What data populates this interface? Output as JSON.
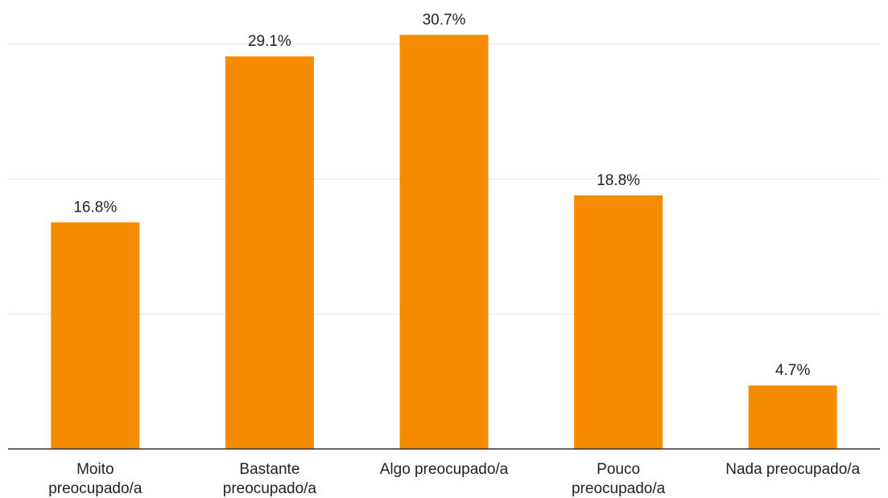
{
  "chart_data": {
    "type": "bar",
    "categories": [
      [
        "Moito",
        "preocupado/a"
      ],
      [
        "Bastante",
        "preocupado/a"
      ],
      [
        "Algo preocupado/a"
      ],
      [
        "Pouco",
        "preocupado/a"
      ],
      [
        "Nada preocupado/a"
      ]
    ],
    "values": [
      16.8,
      29.1,
      30.7,
      18.8,
      4.7
    ],
    "value_labels": [
      "16.8%",
      "29.1%",
      "30.7%",
      "18.8%",
      "4.7%"
    ],
    "unit": "%",
    "ylim": [
      0,
      30
    ],
    "grid": true,
    "legend": "none",
    "colors": {
      "bar": "#F78B00",
      "grid": "#e6e6e6",
      "axis": "#333333",
      "text": "#222222"
    }
  }
}
